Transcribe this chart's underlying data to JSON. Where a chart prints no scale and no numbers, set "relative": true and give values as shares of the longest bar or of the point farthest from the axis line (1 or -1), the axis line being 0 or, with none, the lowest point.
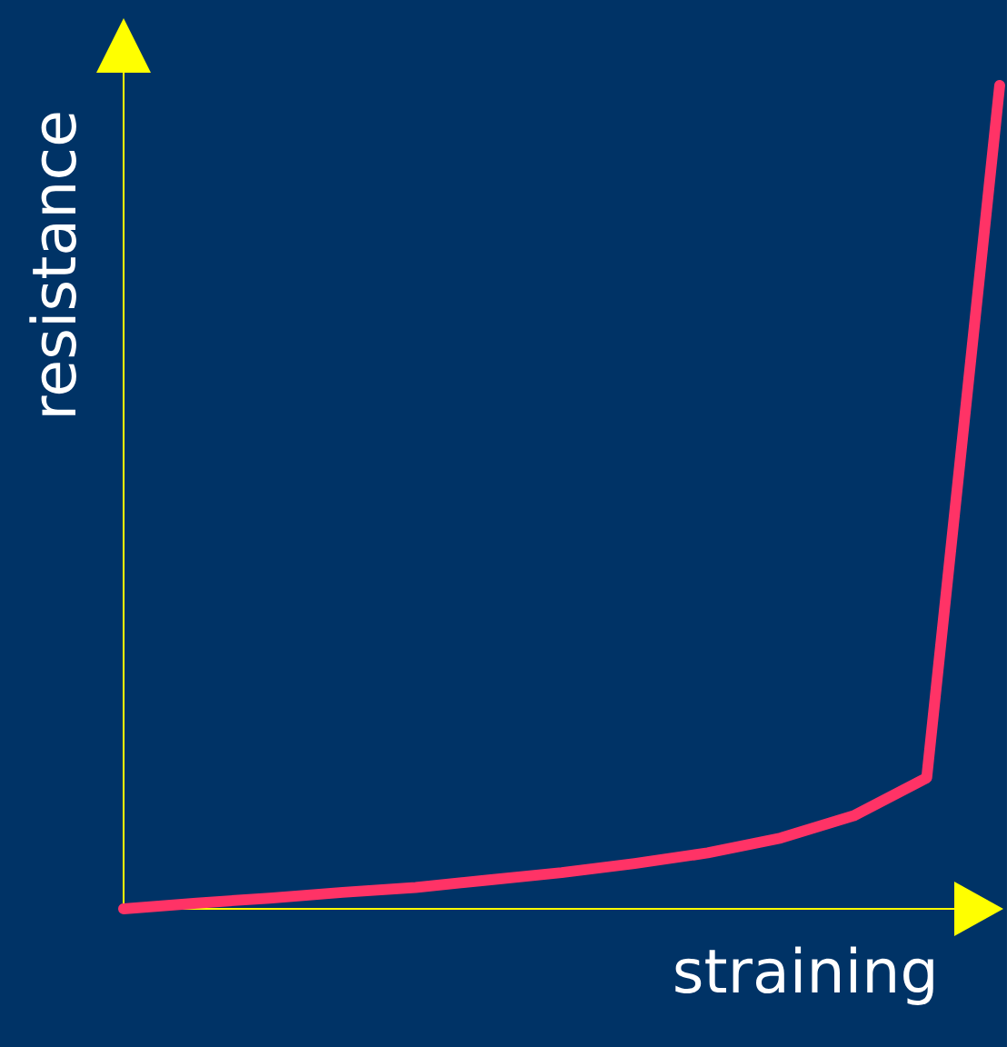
{
  "chart_data": {
    "type": "line",
    "relative": true,
    "xlabel": "straining",
    "ylabel": "resistance",
    "categories": [
      null,
      null,
      null,
      null,
      null,
      null,
      null,
      null,
      null,
      null,
      null,
      null,
      null
    ],
    "series": [
      {
        "color": "#ff3366",
        "values": [
          0,
          0.007,
          0.013,
          0.02,
          0.026,
          0.035,
          0.044,
          0.055,
          0.068,
          0.086,
          0.113,
          0.159,
          1
        ]
      }
    ]
  }
}
